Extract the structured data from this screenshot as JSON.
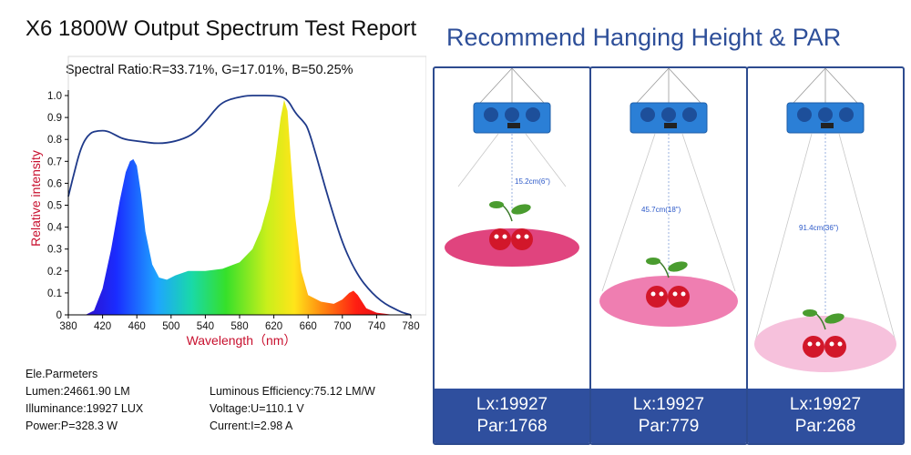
{
  "report": {
    "title": "X6 1800W Output Spectrum Test Report"
  },
  "chart_data": {
    "type": "area",
    "subtitle": "Spectral Ratio:R=33.71%, G=17.01%, B=50.25%",
    "xlabel": "Wavelength（nm）",
    "ylabel": "Relative intensity",
    "xlim": [
      380,
      780
    ],
    "ylim": [
      0,
      1.0
    ],
    "xticks": [
      380,
      420,
      460,
      500,
      540,
      580,
      620,
      660,
      700,
      740,
      780
    ],
    "yticks": [
      0,
      0.1,
      0.2,
      0.3,
      0.4,
      0.5,
      0.6,
      0.7,
      0.8,
      0.9,
      1.0
    ],
    "ytick_labels": [
      "0",
      "0.1",
      "0.2",
      "0.3",
      "0.4",
      "0.5",
      "0.6",
      "0.7",
      "0.8",
      "0.9",
      "1.0"
    ],
    "grid": false,
    "series": [
      {
        "kind": "filled-spectrum",
        "x": [
          380,
          400,
          410,
          420,
          430,
          440,
          447,
          452,
          456,
          460,
          465,
          470,
          478,
          486,
          495,
          505,
          520,
          540,
          560,
          580,
          595,
          605,
          615,
          622,
          628,
          632,
          636,
          640,
          645,
          652,
          660,
          675,
          690,
          700,
          708,
          713,
          718,
          728,
          740,
          760,
          780
        ],
        "values": [
          0,
          0,
          0.02,
          0.12,
          0.3,
          0.52,
          0.65,
          0.7,
          0.71,
          0.68,
          0.55,
          0.38,
          0.23,
          0.17,
          0.16,
          0.18,
          0.2,
          0.2,
          0.21,
          0.24,
          0.3,
          0.39,
          0.53,
          0.72,
          0.9,
          0.98,
          0.93,
          0.7,
          0.45,
          0.2,
          0.09,
          0.06,
          0.05,
          0.07,
          0.1,
          0.11,
          0.09,
          0.03,
          0.01,
          0,
          0
        ]
      },
      {
        "kind": "outline",
        "x": [
          380,
          385,
          395,
          405,
          415,
          425,
          435,
          445,
          465,
          485,
          505,
          525,
          540,
          550,
          560,
          575,
          590,
          600,
          620,
          635,
          645,
          655,
          660,
          670,
          680,
          690,
          700,
          710,
          720,
          730,
          740,
          750,
          760,
          770,
          780
        ],
        "values": [
          0.54,
          0.62,
          0.77,
          0.83,
          0.84,
          0.84,
          0.82,
          0.8,
          0.79,
          0.78,
          0.79,
          0.82,
          0.88,
          0.93,
          0.97,
          0.99,
          1.0,
          1.0,
          1.0,
          0.99,
          0.92,
          0.88,
          0.85,
          0.72,
          0.58,
          0.45,
          0.33,
          0.24,
          0.17,
          0.12,
          0.08,
          0.05,
          0.03,
          0.01,
          0.0
        ]
      }
    ]
  },
  "params": {
    "heading": "Ele.Parmeters",
    "lumen": "Lumen:24661.90 LM",
    "illuminance": "Illuminance:19927 LUX",
    "power": "Power:P=328.3 W",
    "efficiency": "Luminous Efficiency:75.12 LM/W",
    "voltage": "Voltage:U=110.1 V",
    "current": "Current:I=2.98 A"
  },
  "hanging": {
    "title": "Recommend Hanging Height & PAR",
    "cards": [
      {
        "distance": "15.2cm(6\")",
        "lx": "Lx:19927",
        "par": "Par:1768"
      },
      {
        "distance": "45.7cm(18\")",
        "lx": "Lx:19927",
        "par": "Par:779"
      },
      {
        "distance": "91.4cm(36\")",
        "lx": "Lx:19927",
        "par": "Par:268"
      }
    ],
    "colors": {
      "title": "#2e4f99",
      "footer": "#2f4f9e",
      "lamp": "#2b7fd6",
      "light_near": "#e0447e",
      "light_mid": "#ef7eb1",
      "light_far": "#f6c1dc"
    }
  }
}
